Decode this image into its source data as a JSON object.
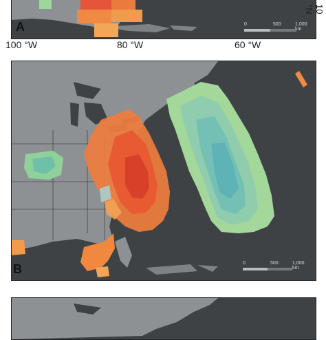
{
  "panels": [
    {
      "label": "A"
    },
    {
      "label": "B"
    },
    {
      "label": ""
    }
  ],
  "lon_labels": [
    "100 °W",
    "80 °W",
    "60 °W"
  ],
  "lat_label": "10 °N",
  "scale_bar": {
    "ticks": [
      "0",
      "500",
      "1,000 km"
    ]
  },
  "colors": {
    "ocean": "#3f4245",
    "land": "#8e9194",
    "hot_red": "#e0482d",
    "orange": "#f18a42",
    "teal": "#6fbfae",
    "green": "#a9d898"
  }
}
